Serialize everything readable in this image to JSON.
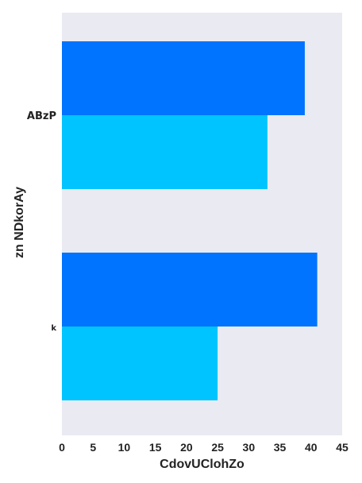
{
  "chart_data": {
    "type": "bar",
    "orientation": "horizontal",
    "categories": [
      "ABzP",
      "k"
    ],
    "series": [
      {
        "values": [
          39,
          41
        ],
        "color": "#0073FF"
      },
      {
        "values": [
          33,
          25
        ],
        "color": "#00C4FF"
      }
    ],
    "xlabel": "CdovUClohZo",
    "ylabel": "zn NDkorAy",
    "xlim": [
      0,
      45
    ],
    "xticks": [
      0,
      5,
      10,
      15,
      20,
      25,
      30,
      35,
      40,
      45
    ],
    "grid": false,
    "background": "#EAEAF2"
  }
}
